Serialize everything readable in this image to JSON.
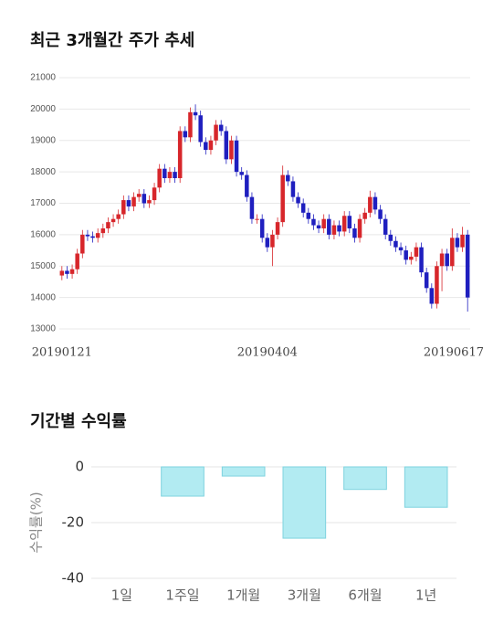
{
  "chart_data": [
    {
      "type": "candlestick",
      "title": "최근 3개월간 주가 추세",
      "categories": [
        "20190121",
        null,
        null,
        null,
        null,
        null,
        null,
        null,
        null,
        null,
        null,
        null,
        null,
        null,
        null,
        null,
        null,
        null,
        null,
        null,
        null,
        null,
        null,
        null,
        null,
        null,
        null,
        null,
        null,
        null,
        null,
        null,
        null,
        null,
        null,
        null,
        null,
        null,
        null,
        null,
        "20190404",
        null,
        null,
        null,
        null,
        null,
        null,
        null,
        null,
        null,
        null,
        null,
        null,
        null,
        null,
        null,
        null,
        null,
        null,
        null,
        null,
        null,
        null,
        null,
        null,
        null,
        null,
        null,
        null,
        null,
        null,
        null,
        null,
        null,
        null,
        null,
        null,
        null,
        null,
        "20190617"
      ],
      "open": [
        14700,
        14850,
        14750,
        14900,
        15400,
        16000,
        15950,
        15900,
        16050,
        16200,
        16400,
        16500,
        16650,
        17100,
        16900,
        17200,
        17300,
        17000,
        17100,
        17500,
        18100,
        17800,
        18000,
        17800,
        19300,
        19100,
        19900,
        19800,
        18950,
        18700,
        19000,
        19500,
        19300,
        18400,
        19000,
        18000,
        17900,
        17200,
        16500,
        16500,
        15900,
        15600,
        16000,
        16400,
        17900,
        17700,
        17200,
        17000,
        16700,
        16500,
        16300,
        16200,
        16500,
        16000,
        16300,
        16100,
        16600,
        16200,
        15900,
        16500,
        16700,
        17200,
        16800,
        16500,
        16000,
        15800,
        15600,
        15500,
        15200,
        15300,
        15600,
        14800,
        14300,
        13800,
        15000,
        15400,
        15000,
        15900,
        15600,
        16000
      ],
      "close": [
        14850,
        14750,
        14900,
        15400,
        16000,
        15950,
        15900,
        16050,
        16200,
        16400,
        16500,
        16650,
        17100,
        16900,
        17200,
        17300,
        17000,
        17100,
        17500,
        18100,
        17800,
        18000,
        17800,
        19300,
        19100,
        19900,
        19800,
        18950,
        18700,
        19000,
        19500,
        19300,
        18400,
        19000,
        18000,
        17900,
        17200,
        16500,
        16500,
        15900,
        15600,
        16000,
        16400,
        17900,
        17700,
        17200,
        17000,
        16700,
        16500,
        16300,
        16200,
        16500,
        16000,
        16300,
        16100,
        16600,
        16200,
        15900,
        16500,
        16700,
        17200,
        16800,
        16500,
        16000,
        15800,
        15600,
        15500,
        15200,
        15300,
        15600,
        14800,
        14300,
        13800,
        15000,
        15400,
        15000,
        15900,
        15600,
        16000,
        14000
      ],
      "high": [
        15000,
        15000,
        15050,
        15550,
        16150,
        16150,
        16100,
        16200,
        16350,
        16550,
        16650,
        16800,
        17250,
        17250,
        17350,
        17450,
        17450,
        17250,
        17650,
        18250,
        18250,
        18150,
        18150,
        19450,
        19450,
        20050,
        20150,
        19950,
        19100,
        19150,
        19650,
        19650,
        19450,
        19150,
        19150,
        18150,
        18050,
        17350,
        16650,
        16650,
        16050,
        16150,
        16550,
        18200,
        18050,
        17850,
        17350,
        17150,
        16850,
        16650,
        16450,
        16650,
        16650,
        16450,
        16450,
        16750,
        16750,
        16350,
        16650,
        16850,
        17400,
        17350,
        16950,
        16650,
        16150,
        15950,
        15750,
        15650,
        15450,
        15750,
        15750,
        14950,
        14450,
        15150,
        15550,
        15550,
        16200,
        16050,
        16250,
        16150
      ],
      "low": [
        14550,
        14600,
        14600,
        14750,
        15250,
        15800,
        15750,
        15750,
        15900,
        16050,
        16250,
        16350,
        16500,
        16750,
        16750,
        17050,
        16850,
        16850,
        16950,
        17350,
        17650,
        17650,
        17650,
        17650,
        18950,
        18950,
        19650,
        18800,
        18550,
        18550,
        18850,
        19150,
        18250,
        18250,
        17850,
        17750,
        17050,
        16350,
        16350,
        15750,
        15450,
        15000,
        15850,
        16250,
        17550,
        17050,
        16850,
        16550,
        16350,
        16150,
        16050,
        16050,
        15850,
        15850,
        15950,
        15950,
        16050,
        15750,
        15750,
        16350,
        16550,
        16650,
        16350,
        15850,
        15650,
        15450,
        15350,
        15050,
        15050,
        15150,
        14650,
        14150,
        13650,
        13650,
        14200,
        14850,
        14850,
        15450,
        15450,
        13550
      ],
      "up_color": "#d7262b",
      "down_color": "#1f1fbf",
      "ylim": [
        13000,
        21000
      ],
      "yticks": [
        13000,
        14000,
        15000,
        16000,
        17000,
        18000,
        19000,
        20000,
        21000
      ],
      "grid": true
    },
    {
      "type": "bar",
      "title": "기간별 수익률",
      "y_label": "수익률(%)",
      "categories": [
        "1일",
        "1주일",
        "1개월",
        "3개월",
        "6개월",
        "1년"
      ],
      "values": [
        0,
        -10.5,
        -3.3,
        -25.6,
        -8.1,
        -14.5
      ],
      "color": "#b2ebf2",
      "edge_color": "#7fd3df",
      "ylim": [
        -40,
        0
      ],
      "yticks": [
        0,
        -20,
        -40
      ],
      "grid": true
    }
  ]
}
